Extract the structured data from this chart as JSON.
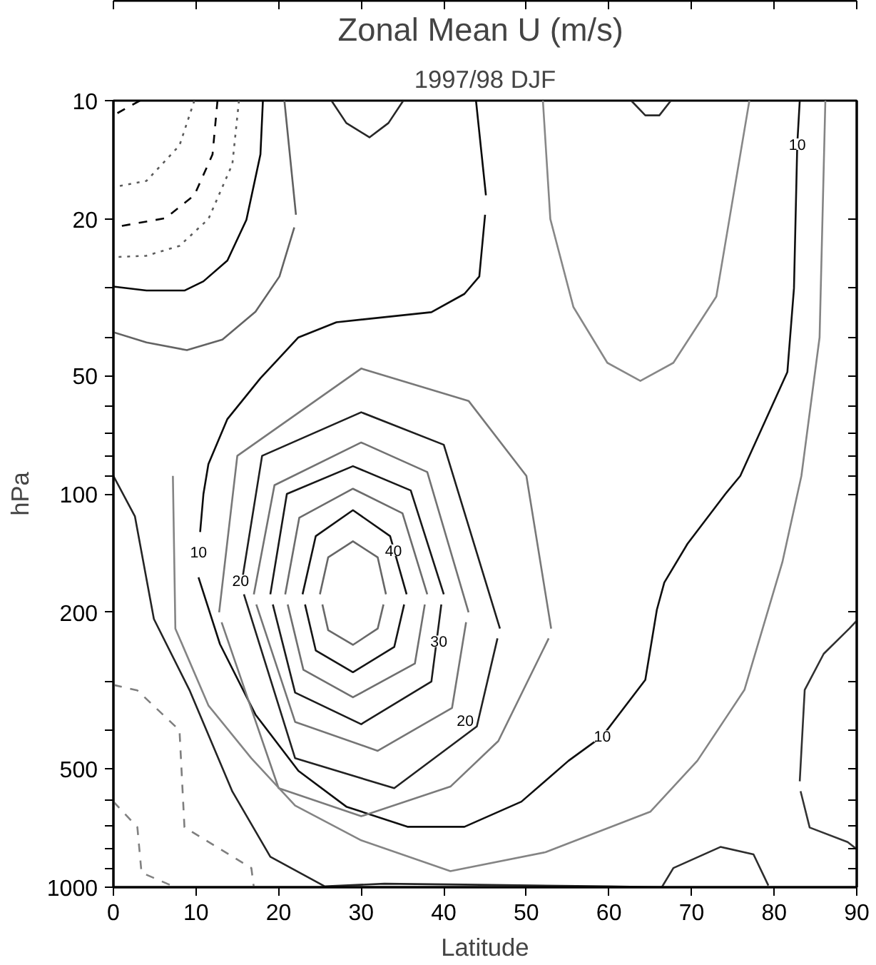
{
  "chart_data": {
    "type": "line",
    "title": "Zonal Mean  U (m/s)",
    "subtitle": "1997/98 DJF",
    "xlabel": "Latitude",
    "ylabel": "hPa",
    "log": "y",
    "xlim": [
      0,
      90
    ],
    "ylim": [
      1000,
      10
    ],
    "xticks": [
      0,
      10,
      20,
      30,
      40,
      50,
      60,
      70,
      80,
      90
    ],
    "yticks": [
      10,
      20,
      {
        "value": 30,
        "label": null
      },
      {
        "value": 40,
        "label": null
      },
      50,
      {
        "value": 60,
        "label": null
      },
      {
        "value": 70,
        "label": null
      },
      {
        "value": 80,
        "label": null
      },
      {
        "value": 90,
        "label": null
      },
      100,
      200,
      {
        "value": 300,
        "label": null
      },
      {
        "value": 400,
        "label": null
      },
      500,
      {
        "value": 600,
        "label": null
      },
      {
        "value": 700,
        "label": null
      },
      {
        "value": 800,
        "label": null
      },
      {
        "value": 900,
        "label": null
      },
      1000
    ],
    "grid": false,
    "series": [
      {
        "color": "#000000",
        "line_style": "dashed",
        "x": [
          3.2,
          0
        ],
        "values": [
          10,
          10.9
        ]
      },
      {
        "color": "#5a5a5a",
        "line_style": "dotted",
        "x": [
          9.8,
          8,
          4,
          0
        ],
        "values": [
          10,
          13,
          16,
          16.6
        ]
      },
      {
        "color": "#030303",
        "line_style": "dashed",
        "x": [
          12.6,
          12,
          9.8,
          6.3,
          0
        ],
        "values": [
          10,
          13.7,
          17.4,
          19.9,
          21
        ]
      },
      {
        "color": "#5d5d5d",
        "line_style": "dotted",
        "x": [
          15.2,
          14.4,
          11.5,
          8,
          4,
          0
        ],
        "values": [
          10,
          14.5,
          20,
          23.4,
          24.8,
          25
        ]
      },
      {
        "color": "#060606",
        "line_style": "solid",
        "x": [
          18.1,
          17.8,
          16.1,
          13.8,
          10.9,
          8.6,
          4,
          0
        ],
        "values": [
          10,
          13.7,
          20.1,
          25.5,
          28.8,
          30.4,
          30.4,
          29.7
        ]
      },
      {
        "color": "#606060",
        "line_style": "solid",
        "x": [
          20.7,
          22.1
        ],
        "values": [
          10,
          19.5
        ]
      },
      {
        "color": "#636363",
        "line_style": "solid",
        "x": [
          21.9,
          20.1,
          17.2,
          13.2,
          8.9,
          4,
          0
        ],
        "values": [
          21,
          28,
          34.4,
          40.5,
          43.1,
          41.2,
          38.8
        ]
      },
      {
        "color": "#090909",
        "line_style": "solid",
        "x": [
          43.9,
          45.1
        ],
        "values": [
          10,
          17.4
        ]
      },
      {
        "color": "#0c0c0c",
        "line_style": "solid",
        "x": [
          45,
          44.3,
          42.5,
          38.5,
          27,
          22.4,
          17.8,
          13.8,
          11.5,
          10.9,
          10.5
        ],
        "values": [
          19.5,
          28,
          31,
          34.5,
          36.6,
          40,
          50.8,
          64.5,
          84,
          100,
          125
        ]
      },
      {
        "color": "#0f0f0f",
        "line_style": "solid",
        "x": [
          10.3,
          12.9,
          17.2,
          22.4,
          28.2,
          35.6,
          42.5,
          49.4,
          55.1,
          59.2,
          64.4,
          65.8,
          66.7,
          69.5,
          74.1,
          75.9,
          81.6,
          82.4,
          82.8,
          83.1
        ],
        "values": [
          163,
          241,
          364,
          506,
          624,
          702,
          702,
          606,
          477,
          413,
          297,
          197,
          168,
          134,
          100,
          90,
          49,
          30,
          12.9,
          10
        ]
      },
      {
        "color": "#666666",
        "line_style": "solid",
        "x": [
          25,
          26,
          29,
          32,
          33
        ],
        "values": [
          180,
          145,
          132,
          145,
          180
        ]
      },
      {
        "color": "#696969",
        "line_style": "solid",
        "x": [
          25.3,
          26,
          29,
          32,
          32.7
        ],
        "values": [
          191,
          222,
          242,
          220,
          191
        ]
      },
      {
        "color": "#121212",
        "line_style": "solid",
        "x": [
          22.9,
          24.5,
          29,
          33.5,
          35.5
        ],
        "values": [
          180,
          128,
          110,
          128,
          180
        ]
      },
      {
        "color": "#151515",
        "line_style": "solid",
        "x": [
          23.2,
          24.5,
          29,
          34,
          35.2
        ],
        "values": [
          191,
          250,
          284,
          245,
          191
        ]
      },
      {
        "color": "#6c6c6c",
        "line_style": "solid",
        "x": [
          20.8,
          22.5,
          29,
          35,
          38
        ],
        "values": [
          180,
          115,
          97,
          112,
          180
        ]
      },
      {
        "color": "#6f6f6f",
        "line_style": "solid",
        "x": [
          21.1,
          23,
          29,
          36.5,
          37.7
        ],
        "values": [
          191,
          280,
          329,
          270,
          191
        ]
      },
      {
        "color": "#181818",
        "line_style": "solid",
        "x": [
          19,
          21,
          29,
          36,
          40
        ],
        "values": [
          180,
          100,
          85,
          98,
          180
        ]
      },
      {
        "color": "#1b1b1b",
        "line_style": "solid",
        "x": [
          19.3,
          22,
          30,
          38.5,
          39.7
        ],
        "values": [
          191,
          320,
          385,
          300,
          191
        ]
      },
      {
        "color": "#727272",
        "line_style": "solid",
        "x": [
          17,
          19.5,
          30,
          38,
          43
        ],
        "values": [
          180,
          95,
          74,
          88,
          200
        ]
      },
      {
        "color": "#757575",
        "line_style": "solid",
        "x": [
          17.3,
          22,
          32,
          41,
          42.7
        ],
        "values": [
          191,
          380,
          450,
          350,
          212
        ]
      },
      {
        "color": "#1e1e1e",
        "line_style": "solid",
        "x": [
          15.5,
          18,
          30,
          40,
          46.8
        ],
        "values": [
          170,
          80,
          62,
          75,
          220
        ]
      },
      {
        "color": "#212121",
        "line_style": "solid",
        "x": [
          15.8,
          22,
          34,
          44,
          46.5
        ],
        "values": [
          180,
          470,
          560,
          390,
          233
        ]
      },
      {
        "color": "#787878",
        "line_style": "solid",
        "x": [
          12.8,
          15,
          30,
          43,
          50,
          53
        ],
        "values": [
          200,
          80,
          48,
          58,
          90,
          220
        ]
      },
      {
        "color": "#7b7b7b",
        "line_style": "solid",
        "x": [
          13.1,
          20,
          30,
          40.8,
          46.6,
          52.7
        ],
        "values": [
          212,
          560,
          660,
          555,
          425,
          233
        ]
      },
      {
        "color": "#242424",
        "line_style": "solid",
        "x": [
          0,
          2.6,
          4.9,
          9.2,
          14.4,
          19,
          25.6,
          32.8,
          42.5,
          60,
          66.4
        ],
        "values": [
          90,
          114,
          208,
          315,
          571,
          837,
          995,
          980,
          985,
          995,
          1000
        ]
      },
      {
        "color": "#7e7e7e",
        "line_style": "dashed",
        "x": [
          0,
          2.9,
          8,
          8.6,
          16.7,
          17
        ],
        "values": [
          306,
          316,
          399,
          704,
          894,
          1000
        ]
      },
      {
        "color": "#818181",
        "line_style": "dashed",
        "x": [
          0,
          2.9,
          3.4,
          7.5
        ],
        "values": [
          606,
          704,
          918,
          1000
        ]
      },
      {
        "color": "#848484",
        "line_style": "solid",
        "x": [
          7.2,
          7.5,
          11.5,
          16.7,
          22,
          30,
          40.8,
          52.3,
          65,
          70.7,
          76.4,
          81,
          83.3,
          85.5,
          86.2
        ],
        "values": [
          90,
          220,
          345,
          470,
          620,
          760,
          910,
          815,
          643,
          477,
          315,
          149,
          90,
          40,
          10
        ]
      },
      {
        "color": "#878787",
        "line_style": "solid",
        "x": [
          52,
          52.9,
          55.7,
          59.8,
          63.8,
          67.8,
          73,
          77
        ],
        "values": [
          10,
          20,
          33.5,
          46.4,
          51.6,
          46.4,
          31.5,
          10
        ]
      },
      {
        "color": "#272727",
        "line_style": "solid",
        "x": [
          26.4,
          28.2,
          31,
          33.3,
          35.1
        ],
        "values": [
          10,
          11.4,
          12.4,
          11.4,
          10
        ]
      },
      {
        "color": "#2a2a2a",
        "line_style": "solid",
        "x": [
          62.7,
          64.4,
          66.1,
          67.5
        ],
        "values": [
          10,
          10.9,
          10.9,
          10
        ]
      },
      {
        "color": "#2d2d2d",
        "line_style": "solid",
        "x": [
          66.4,
          67.8,
          73.5,
          77.5,
          79.3
        ],
        "values": [
          1000,
          894,
          790,
          825,
          990
        ]
      },
      {
        "color": "#303030",
        "line_style": "solid",
        "x": [
          90,
          89.1,
          86,
          83.7,
          83.1
        ],
        "values": [
          210,
          220,
          255,
          315,
          538
        ]
      },
      {
        "color": "#333333",
        "line_style": "solid",
        "x": [
          83.2,
          84.3,
          88.9,
          90
        ],
        "values": [
          570,
          705,
          768,
          800
        ]
      }
    ],
    "annotations": [
      {
        "text": "10",
        "x": 82.8,
        "y": 12.9
      },
      {
        "text": "10",
        "x": 59.2,
        "y": 413
      },
      {
        "text": "10",
        "x": 10.3,
        "y": 140
      },
      {
        "text": "20",
        "x": 15.4,
        "y": 166
      },
      {
        "text": "40",
        "x": 33.9,
        "y": 139
      },
      {
        "text": "30",
        "x": 39.4,
        "y": 237
      },
      {
        "text": "20",
        "x": 42.6,
        "y": 376
      }
    ]
  }
}
